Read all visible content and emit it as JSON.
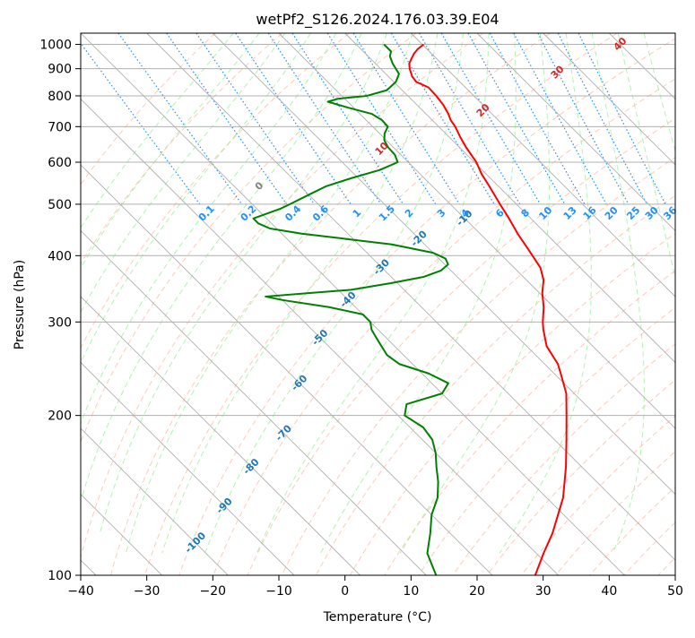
{
  "chart_data": {
    "type": "line",
    "diagram": "skew-t log-p",
    "title": "wetPf2_S126.2024.176.03.39.E04",
    "xlabel": "Temperature (°C)",
    "ylabel": "Pressure (hPa)",
    "xlim": [
      -40,
      50
    ],
    "ylim": [
      1050,
      100
    ],
    "y_scale": "log",
    "grid": true,
    "x_ticks": [
      -40,
      -30,
      -20,
      -10,
      0,
      10,
      20,
      30,
      40,
      50
    ],
    "y_ticks": [
      1000,
      900,
      800,
      700,
      600,
      500,
      400,
      300,
      200,
      100
    ],
    "series": [
      {
        "color": "#ff0000",
        "points": [
          [
            1000,
            10.2
          ],
          [
            980,
            8.6
          ],
          [
            960,
            7.3
          ],
          [
            940,
            6.2
          ],
          [
            920,
            5.1
          ],
          [
            900,
            4.4
          ],
          [
            870,
            3.6
          ],
          [
            850,
            3.4
          ],
          [
            830,
            4.4
          ],
          [
            800,
            4.3
          ],
          [
            770,
            4.0
          ],
          [
            740,
            3.4
          ],
          [
            720,
            2.8
          ],
          [
            700,
            2.5
          ],
          [
            670,
            1.7
          ],
          [
            640,
            1.0
          ],
          [
            600,
            0.3
          ],
          [
            570,
            -0.7
          ],
          [
            540,
            -1.4
          ],
          [
            500,
            -2.5
          ],
          [
            470,
            -3.3
          ],
          [
            440,
            -4.3
          ],
          [
            410,
            -5.1
          ],
          [
            380,
            -6.0
          ],
          [
            360,
            -7.4
          ],
          [
            340,
            -9.6
          ],
          [
            320,
            -11.5
          ],
          [
            300,
            -13.9
          ],
          [
            290,
            -15.0
          ],
          [
            270,
            -17.0
          ],
          [
            250,
            -18.0
          ],
          [
            240,
            -19.0
          ],
          [
            220,
            -21.2
          ],
          [
            200,
            -24.5
          ],
          [
            180,
            -28.2
          ],
          [
            160,
            -32.4
          ],
          [
            140,
            -37.5
          ],
          [
            120,
            -44.5
          ],
          [
            110,
            -48.9
          ],
          [
            100,
            -53.5
          ]
        ]
      },
      {
        "color": "#008000",
        "points": [
          [
            1000,
            4.2
          ],
          [
            970,
            4.2
          ],
          [
            950,
            3.3
          ],
          [
            920,
            2.6
          ],
          [
            880,
            2.0
          ],
          [
            850,
            0.3
          ],
          [
            820,
            -2.3
          ],
          [
            800,
            -6.2
          ],
          [
            790,
            -11.0
          ],
          [
            780,
            -13.0
          ],
          [
            760,
            -10.8
          ],
          [
            740,
            -8.2
          ],
          [
            720,
            -7.6
          ],
          [
            700,
            -7.7
          ],
          [
            680,
            -9.2
          ],
          [
            660,
            -10.3
          ],
          [
            640,
            -10.8
          ],
          [
            620,
            -10.9
          ],
          [
            600,
            -11.6
          ],
          [
            580,
            -15.5
          ],
          [
            560,
            -21.0
          ],
          [
            540,
            -26.2
          ],
          [
            520,
            -30.2
          ],
          [
            500,
            -34.3
          ],
          [
            490,
            -36.5
          ],
          [
            470,
            -42.0
          ],
          [
            460,
            -42.0
          ],
          [
            450,
            -41.0
          ],
          [
            440,
            -37.0
          ],
          [
            430,
            -31.0
          ],
          [
            420,
            -25.0
          ],
          [
            405,
            -20.0
          ],
          [
            395,
            -19.0
          ],
          [
            385,
            -19.5
          ],
          [
            375,
            -21.5
          ],
          [
            365,
            -25.0
          ],
          [
            355,
            -31.0
          ],
          [
            345,
            -38.0
          ],
          [
            340,
            -45.0
          ],
          [
            335,
            -52.0
          ],
          [
            330,
            -50.0
          ],
          [
            320,
            -44.0
          ],
          [
            310,
            -40.0
          ],
          [
            300,
            -40.0
          ],
          [
            290,
            -41.0
          ],
          [
            280,
            -41.5
          ],
          [
            270,
            -42.0
          ],
          [
            260,
            -42.5
          ],
          [
            250,
            -42.0
          ],
          [
            240,
            -39.0
          ],
          [
            230,
            -37.5
          ],
          [
            220,
            -40.0
          ],
          [
            210,
            -47.0
          ],
          [
            200,
            -49.0
          ],
          [
            190,
            -48.0
          ],
          [
            180,
            -48.5
          ],
          [
            170,
            -50.0
          ],
          [
            160,
            -52.0
          ],
          [
            150,
            -54.0
          ],
          [
            140,
            -56.5
          ],
          [
            130,
            -60.0
          ],
          [
            120,
            -63.0
          ],
          [
            110,
            -66.5
          ],
          [
            100,
            -68.5
          ]
        ]
      }
    ],
    "isotherm_labels": [
      "-100",
      "-90",
      "-80",
      "-70",
      "-60",
      "-50",
      "-40",
      "-30",
      "-20",
      "-10"
    ],
    "mixing_ratio_labels": [
      "0.1",
      "0.2",
      "0.4",
      "0.6",
      "1",
      "1.5",
      "2",
      "3",
      "4",
      "6",
      "8",
      "10",
      "13",
      "16",
      "20",
      "25",
      "30",
      "36"
    ],
    "moist_adiabat_labels": [
      "0",
      "10",
      "20",
      "30",
      "40"
    ],
    "colors": {
      "temperature": "#ff0000",
      "dewpoint": "#008000",
      "isotherm_label": "#1f77b4",
      "mixing_ratio": "#1e90ff",
      "moist_adiabat_label": "#d62728",
      "dry_adiabat": "#ffa07a",
      "moist_adiabat": "#90ee90",
      "grid": "#b0b0b0"
    }
  }
}
